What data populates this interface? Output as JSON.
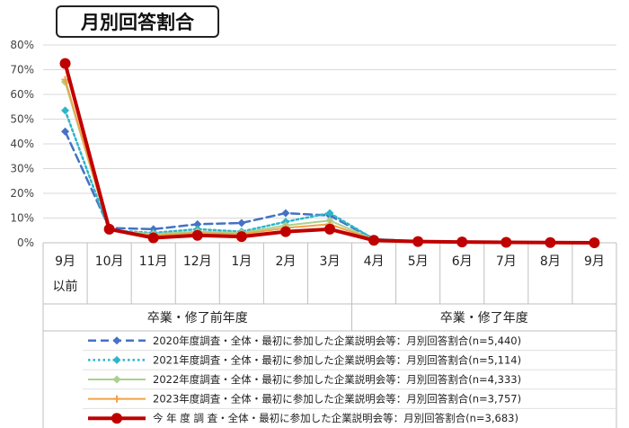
{
  "chart_data": {
    "type": "line",
    "title": "月別回答割合",
    "ylim": [
      0,
      80
    ],
    "yticks": [
      "0%",
      "10%",
      "20%",
      "30%",
      "40%",
      "50%",
      "60%",
      "70%",
      "80%"
    ],
    "categories": [
      {
        "line1": "9月",
        "line2": "以前"
      },
      {
        "line1": "10月",
        "line2": ""
      },
      {
        "line1": "11月",
        "line2": ""
      },
      {
        "line1": "12月",
        "line2": ""
      },
      {
        "line1": "1月",
        "line2": ""
      },
      {
        "line1": "2月",
        "line2": ""
      },
      {
        "line1": "3月",
        "line2": ""
      },
      {
        "line1": "4月",
        "line2": ""
      },
      {
        "line1": "5月",
        "line2": ""
      },
      {
        "line1": "6月",
        "line2": ""
      },
      {
        "line1": "7月",
        "line2": ""
      },
      {
        "line1": "8月",
        "line2": ""
      },
      {
        "line1": "9月",
        "line2": ""
      }
    ],
    "periods": [
      {
        "label": "卒業・修了前年度",
        "from": 0,
        "to": 6
      },
      {
        "label": "卒業・修了年度",
        "from": 7,
        "to": 12
      }
    ],
    "grid": true,
    "legend_position": "bottom-table",
    "series": [
      {
        "name": "2020年度調査・全体・最初に参加した企業説明会等：月別回答割合(n=5,440)",
        "values": [
          45,
          6,
          5.5,
          7.5,
          8,
          12,
          11,
          1.5,
          0.5,
          0.3,
          0.2,
          0.1,
          0.1
        ],
        "color": "#4472C4",
        "style": "dashed",
        "marker": "diamond"
      },
      {
        "name": "2021年度調査・全体・最初に参加した企業説明会等：月別回答割合(n=5,114)",
        "values": [
          53.5,
          5,
          4,
          5.5,
          4.5,
          8.5,
          12,
          1.5,
          0.5,
          0.3,
          0.2,
          0.1,
          0.1
        ],
        "color": "#2EB5C9",
        "style": "dotted",
        "marker": "diamond"
      },
      {
        "name": "2022年度調査・全体・最初に参加した企業説明会等：月別回答割合(n=4,333)",
        "values": [
          65,
          5,
          3.5,
          4.5,
          4,
          7,
          9,
          1.3,
          0.5,
          0.3,
          0.2,
          0.1,
          0.1
        ],
        "color": "#A9D18E",
        "style": "solid",
        "marker": "diamond"
      },
      {
        "name": "2023年度調査・全体・最初に参加した企業説明会等：月別回答割合(n=3,757)",
        "values": [
          66,
          5,
          3,
          4,
          3.5,
          6,
          7.5,
          1.2,
          0.5,
          0.3,
          0.2,
          0.1,
          0.1
        ],
        "color": "#F4A144",
        "style": "solid",
        "marker": "cross"
      },
      {
        "name": "今 年 度 調 査・全体・最初に参加した企業説明会等：月別回答割合(n=3,683)",
        "values": [
          72.5,
          5.5,
          2,
          3,
          2.5,
          4.5,
          5.5,
          1,
          0.5,
          0.3,
          0.2,
          0.1,
          0
        ],
        "color": "#C00000",
        "style": "solid",
        "marker": "circle"
      }
    ]
  }
}
